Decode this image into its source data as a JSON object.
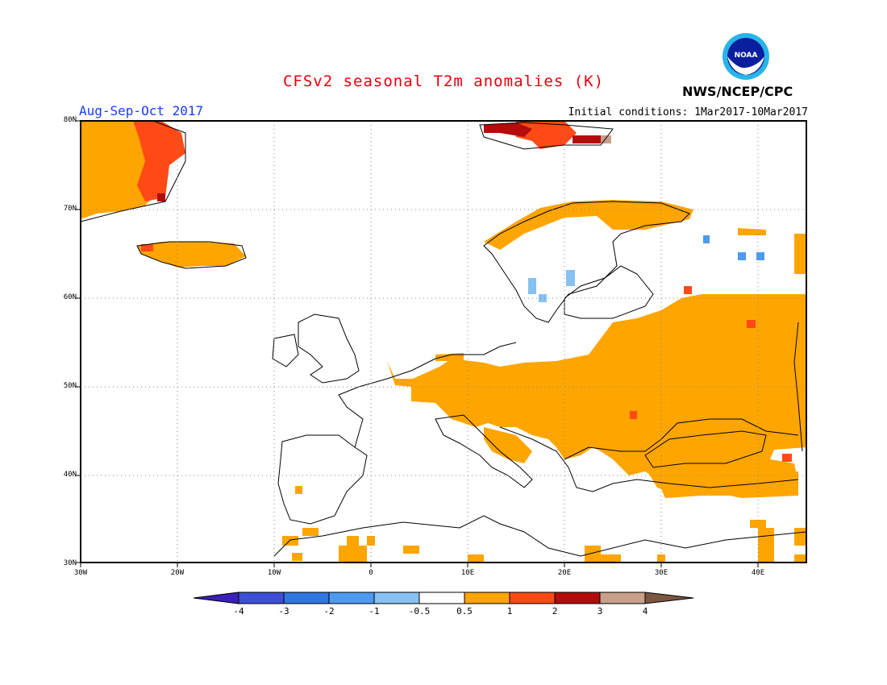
{
  "title": "CFSv2 seasonal T2m anomalies (K)",
  "agency": "NWS/NCEP/CPC",
  "logo_text": "NOAA",
  "period": "Aug-Sep-Oct 2017",
  "initial_conditions": "Initial conditions: 1Mar2017-10Mar2017",
  "lat_labels": [
    "80N",
    "70N",
    "60N",
    "50N",
    "40N",
    "30N"
  ],
  "lon_labels": [
    "30W",
    "20W",
    "10W",
    "0",
    "10E",
    "20E",
    "30E",
    "40E"
  ],
  "colorbar": {
    "labels": [
      "-4",
      "-3",
      "-2",
      "-1",
      "-0.5",
      "0.5",
      "1",
      "2",
      "3",
      "4"
    ],
    "colors": [
      "#3b1fb8",
      "#3c4fd6",
      "#2f76df",
      "#4e9af0",
      "#87c1f2",
      "#ffffff",
      "#ffa500",
      "#ff4a16",
      "#b40b0b",
      "#c8a08c",
      "#7c5640"
    ]
  },
  "colors": {
    "title": "#e8000b",
    "period": "#1a3cff",
    "land_outline": "#000000",
    "ocean": "#ffffff"
  }
}
